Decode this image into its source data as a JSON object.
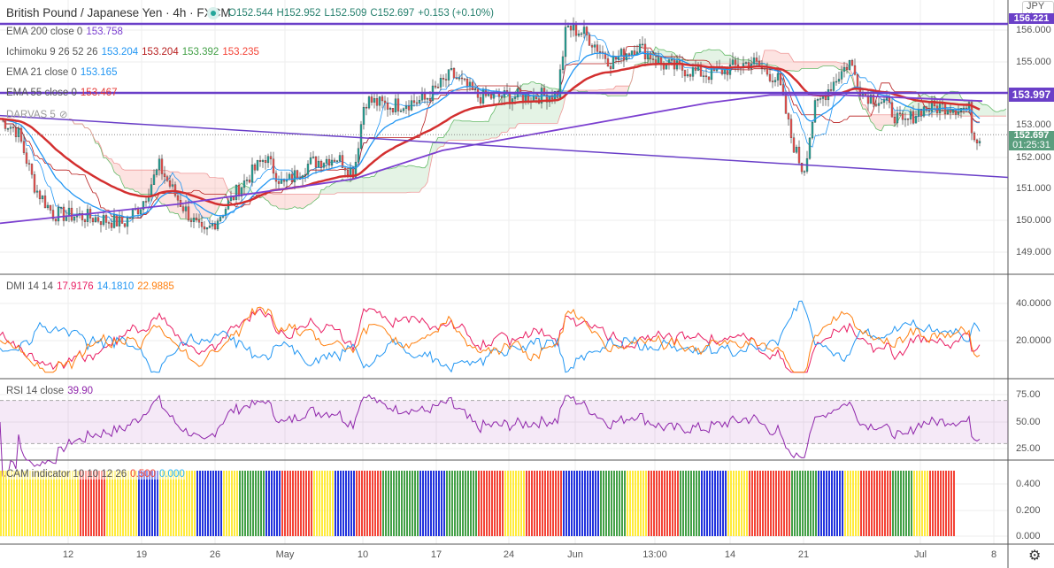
{
  "header": {
    "symbol": "British Pound / Japanese Yen · 4h · FXCM",
    "open": "O152.544",
    "high": "H152.952",
    "low": "L152.509",
    "close": "C152.697",
    "change": "+0.153 (+0.10%)"
  },
  "currency_button": "JPY",
  "indicators": [
    {
      "name": "EMA 200 close 0",
      "values": [
        {
          "v": "153.758",
          "c": "#7b3fd0"
        }
      ]
    },
    {
      "name": "Ichimoku 9 26 52 26",
      "values": [
        {
          "v": "153.204",
          "c": "#2196f3"
        },
        {
          "v": "153.204",
          "c": "#b71c1c"
        },
        {
          "v": "153.392",
          "c": "#43a047"
        },
        {
          "v": "153.235",
          "c": "#f44336"
        }
      ]
    },
    {
      "name": "EMA 21 close 0",
      "values": [
        {
          "v": "153.165",
          "c": "#2196f3"
        }
      ]
    },
    {
      "name": "EMA 55 close 0",
      "values": [
        {
          "v": "153.467",
          "c": "#e53935"
        }
      ]
    },
    {
      "name": "DARVAS 5",
      "values": []
    }
  ],
  "dmi": {
    "name": "DMI 14 14",
    "values": [
      {
        "v": "17.9176",
        "c": "#e91e63"
      },
      {
        "v": "14.1810",
        "c": "#2196f3"
      },
      {
        "v": "22.9885",
        "c": "#ff7f0e"
      }
    ]
  },
  "rsi": {
    "name": "RSI 14 close",
    "values": [
      {
        "v": "39.90",
        "c": "#8e24aa"
      }
    ]
  },
  "cam": {
    "name": "CAM indicator 10 10 12 26",
    "values": [
      {
        "v": "0.500",
        "c": "#f44336"
      },
      {
        "v": "0.000",
        "c": "#29b6f6"
      }
    ],
    "runs": [
      [
        "#ffeb3b",
        30
      ],
      [
        "#f44336",
        10
      ],
      [
        "#ffeb3b",
        12
      ],
      [
        "#2233dd",
        8
      ],
      [
        "#ffeb3b",
        14
      ],
      [
        "#2233dd",
        10
      ],
      [
        "#ffeb3b",
        6
      ],
      [
        "#43a047",
        10
      ],
      [
        "#2233dd",
        6
      ],
      [
        "#f44336",
        12
      ],
      [
        "#ffeb3b",
        8
      ],
      [
        "#2233dd",
        8
      ],
      [
        "#f44336",
        10
      ],
      [
        "#43a047",
        14
      ],
      [
        "#2233dd",
        10
      ],
      [
        "#43a047",
        12
      ],
      [
        "#f44336",
        10
      ],
      [
        "#ffeb3b",
        8
      ],
      [
        "#f44336",
        14
      ],
      [
        "#2233dd",
        14
      ],
      [
        "#43a047",
        10
      ],
      [
        "#ffeb3b",
        8
      ],
      [
        "#f44336",
        12
      ],
      [
        "#43a047",
        8
      ],
      [
        "#2233dd",
        10
      ],
      [
        "#ffeb3b",
        8
      ],
      [
        "#f44336",
        16
      ],
      [
        "#43a047",
        10
      ],
      [
        "#2233dd",
        10
      ],
      [
        "#ffeb3b",
        6
      ],
      [
        "#f44336",
        12
      ],
      [
        "#43a047",
        8
      ],
      [
        "#ffeb3b",
        6
      ],
      [
        "#f44336",
        10
      ]
    ]
  },
  "price_axis": [
    "156.000",
    "155.000",
    "153.000",
    "152.000",
    "151.000",
    "150.000",
    "149.000"
  ],
  "price_tags": {
    "resistance_top": "156.221",
    "resistance_mid": "153.997",
    "last_price": "152.697",
    "countdown": "01:25:31"
  },
  "dmi_axis": [
    "40.0000",
    "20.0000"
  ],
  "rsi_axis": [
    "75.00",
    "50.00",
    "25.00"
  ],
  "cam_axis": [
    "0.400",
    "0.200",
    "0.000"
  ],
  "time_axis": [
    "12",
    "19",
    "26",
    "May",
    "10",
    "17",
    "24",
    "Jun",
    "13:00",
    "14",
    "21",
    "Jul",
    "8"
  ],
  "colors": {
    "up": "#26a69a",
    "down": "#ef5350",
    "ema200": "#7b3fd0",
    "ema21": "#2196f3",
    "ema55": "#d32f2f",
    "trend": "#6a3fc8"
  },
  "price_keypoints": [
    [
      0,
      153.2
    ],
    [
      20,
      152.8
    ],
    [
      40,
      151
    ],
    [
      60,
      150.2
    ],
    [
      100,
      150.1
    ],
    [
      140,
      149.9
    ],
    [
      160,
      150.5
    ],
    [
      180,
      151.7
    ],
    [
      200,
      150.7
    ],
    [
      230,
      149.5
    ],
    [
      250,
      150.2
    ],
    [
      270,
      151
    ],
    [
      300,
      152
    ],
    [
      320,
      151.1
    ],
    [
      350,
      151.8
    ],
    [
      380,
      152
    ],
    [
      400,
      151.5
    ],
    [
      412,
      153.8
    ],
    [
      440,
      153.6
    ],
    [
      480,
      153.8
    ],
    [
      510,
      154.6
    ],
    [
      540,
      153.9
    ],
    [
      600,
      153.9
    ],
    [
      630,
      154
    ],
    [
      640,
      156.1
    ],
    [
      660,
      155.9
    ],
    [
      690,
      155
    ],
    [
      720,
      155.5
    ],
    [
      750,
      154.9
    ],
    [
      800,
      154.6
    ],
    [
      850,
      155
    ],
    [
      880,
      154.4
    ],
    [
      895,
      152.5
    ],
    [
      908,
      151.5
    ],
    [
      920,
      153.5
    ],
    [
      940,
      154.3
    ],
    [
      960,
      155
    ],
    [
      975,
      154
    ],
    [
      1000,
      153.7
    ],
    [
      1020,
      153
    ],
    [
      1040,
      153.5
    ],
    [
      1070,
      153.6
    ],
    [
      1095,
      153.5
    ],
    [
      1100,
      152.6
    ],
    [
      1110,
      152.7
    ]
  ],
  "ema200_keypoints": [
    [
      0,
      149.9
    ],
    [
      200,
      150.5
    ],
    [
      400,
      151.3
    ],
    [
      500,
      152.2
    ],
    [
      600,
      152.7
    ],
    [
      700,
      153.2
    ],
    [
      800,
      153.7
    ],
    [
      870,
      153.95
    ],
    [
      950,
      153.95
    ],
    [
      1110,
      153.76
    ]
  ],
  "trendline": [
    [
      0,
      153.3
    ],
    [
      1139,
      151.35
    ]
  ]
}
